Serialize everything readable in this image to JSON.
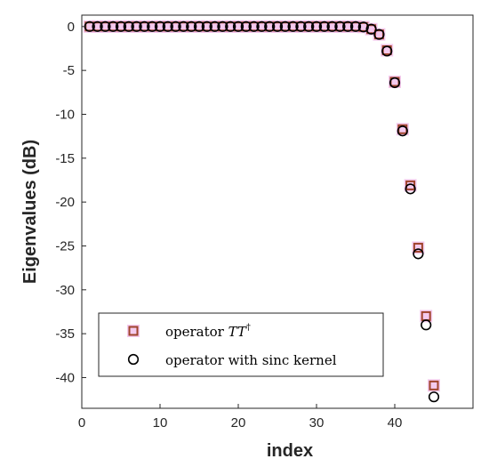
{
  "chart_data": {
    "type": "scatter",
    "title": "",
    "xlabel": "index",
    "ylabel": "Eigenvalues (dB)",
    "xlim": [
      0,
      50
    ],
    "ylim": [
      -43.5,
      1.3
    ],
    "x_ticks": [
      "0",
      "10",
      "20",
      "30",
      "40"
    ],
    "x_tick_values": [
      0,
      10,
      20,
      30,
      40
    ],
    "y_ticks": [
      "0",
      "-5",
      "-10",
      "-15",
      "-20",
      "-25",
      "-30",
      "-35",
      "-40"
    ],
    "y_tick_values": [
      0,
      -5,
      -10,
      -15,
      -20,
      -25,
      -30,
      -35,
      -40
    ],
    "grid": false,
    "legend_position": "bottom-left",
    "series": [
      {
        "name": "operator TT†",
        "label_prefix": "operator ",
        "label_math": "TT",
        "label_sup": "†",
        "marker": "square",
        "color": "#a0442c",
        "halo": "#f0b8e8",
        "x": [
          1,
          2,
          3,
          4,
          5,
          6,
          7,
          8,
          9,
          10,
          11,
          12,
          13,
          14,
          15,
          16,
          17,
          18,
          19,
          20,
          21,
          22,
          23,
          24,
          25,
          26,
          27,
          28,
          29,
          30,
          31,
          32,
          33,
          34,
          35,
          36,
          37,
          38,
          39,
          40,
          41,
          42,
          43,
          44,
          45
        ],
        "y": [
          0,
          0,
          0,
          0,
          0,
          0,
          0,
          0,
          0,
          0,
          0,
          0,
          0,
          0,
          0,
          0,
          0,
          0,
          0,
          0,
          0,
          0,
          0,
          0,
          0,
          0,
          0,
          0,
          0,
          0,
          0,
          0,
          0,
          0,
          0,
          -0.05,
          -0.3,
          -0.9,
          -2.7,
          -6.3,
          -11.7,
          -18.1,
          -25.2,
          -33.0,
          -40.9
        ]
      },
      {
        "name": "operator with sinc kernel",
        "marker": "circle",
        "color": "#000000",
        "x": [
          1,
          2,
          3,
          4,
          5,
          6,
          7,
          8,
          9,
          10,
          11,
          12,
          13,
          14,
          15,
          16,
          17,
          18,
          19,
          20,
          21,
          22,
          23,
          24,
          25,
          26,
          27,
          28,
          29,
          30,
          31,
          32,
          33,
          34,
          35,
          36,
          37,
          38,
          39,
          40,
          41,
          42,
          43,
          44,
          45
        ],
        "y": [
          0,
          0,
          0,
          0,
          0,
          0,
          0,
          0,
          0,
          0,
          0,
          0,
          0,
          0,
          0,
          0,
          0,
          0,
          0,
          0,
          0,
          0,
          0,
          0,
          0,
          0,
          0,
          0,
          0,
          0,
          0,
          0,
          0,
          0,
          0,
          -0.05,
          -0.3,
          -0.9,
          -2.8,
          -6.4,
          -11.9,
          -18.5,
          -25.9,
          -34.0,
          -42.2
        ]
      }
    ]
  }
}
